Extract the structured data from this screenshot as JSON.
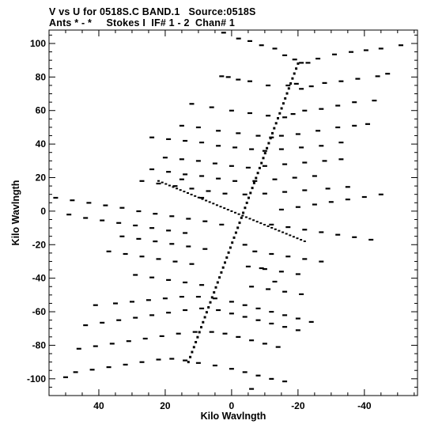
{
  "header": {
    "line1": "V vs U for 0518S.C BAND.1   Source:0518S",
    "line2": "Ants * - *     Stokes I  IF# 1 - 2  Chan# 1"
  },
  "chart_data": {
    "type": "scatter",
    "title": "V vs U for 0518S.C BAND.1   Source:0518S",
    "subtitle": "Ants * - *     Stokes I  IF# 1 - 2  Chan# 1",
    "xlabel": "Kilo Wavlngth",
    "ylabel": "Kilo Wavlngth",
    "xlim": [
      55,
      -56
    ],
    "ylim": [
      -110,
      108
    ],
    "x_reversed": true,
    "xticks": [
      40,
      20,
      0,
      -20,
      -40
    ],
    "yticks": [
      100,
      80,
      60,
      40,
      20,
      0,
      -20,
      -40,
      -60,
      -80,
      -100
    ],
    "xtick_labels": [
      "40",
      "20",
      "0",
      "-20",
      "-40"
    ],
    "ytick_labels": [
      "100",
      "80",
      "60",
      "40",
      "20",
      "0",
      "-20",
      "-40",
      "-60",
      "-80",
      "-100"
    ],
    "grid": false,
    "legend": "none",
    "marker_color": "#000000",
    "series": [
      {
        "values": [
          [
            2.4,
            106.5
          ],
          [
            -2.1,
            103
          ],
          [
            -5.5,
            101.5
          ],
          [
            -9,
            99
          ],
          [
            -13,
            97
          ],
          [
            -16,
            93
          ],
          [
            -19,
            90.5
          ],
          [
            -21,
            88.5
          ],
          [
            -23,
            88.5
          ],
          [
            -26,
            91
          ],
          [
            -31,
            93.5
          ],
          [
            -36,
            95
          ],
          [
            -40.5,
            96
          ],
          [
            -45,
            97
          ],
          [
            -51,
            99
          ],
          [
            -21,
            73
          ],
          [
            -19.5,
            76
          ],
          [
            -17,
            75
          ],
          [
            -11,
            75
          ],
          [
            -5.5,
            77.5
          ],
          [
            -2,
            78.5
          ],
          [
            1,
            80
          ],
          [
            3,
            80.5
          ],
          [
            -24,
            74.5
          ],
          [
            -28,
            76.5
          ],
          [
            -33,
            77.5
          ],
          [
            -38,
            79
          ],
          [
            -44,
            80.5
          ],
          [
            -47,
            82
          ],
          [
            12,
            64
          ],
          [
            6,
            62
          ],
          [
            0,
            60
          ],
          [
            -5.5,
            58.5
          ],
          [
            -11,
            57
          ],
          [
            -16,
            56
          ],
          [
            -18.5,
            58
          ],
          [
            -22,
            60
          ],
          [
            -27,
            61
          ],
          [
            -32,
            63
          ],
          [
            -37,
            65
          ],
          [
            -43,
            66
          ],
          [
            15,
            51
          ],
          [
            10,
            50
          ],
          [
            4,
            48
          ],
          [
            -2,
            46.5
          ],
          [
            -8,
            45
          ],
          [
            -12,
            44
          ],
          [
            -15,
            45
          ],
          [
            -20,
            46
          ],
          [
            -26,
            48
          ],
          [
            -32,
            50
          ],
          [
            -37,
            51
          ],
          [
            -41,
            52
          ],
          [
            24,
            44
          ],
          [
            19,
            43
          ],
          [
            14,
            42
          ],
          [
            9,
            41
          ],
          [
            4,
            39
          ],
          [
            -1,
            38
          ],
          [
            -6,
            37
          ],
          [
            -10,
            36
          ],
          [
            -15,
            37
          ],
          [
            -21,
            38
          ],
          [
            -27,
            39
          ],
          [
            -33,
            41
          ],
          [
            20,
            32
          ],
          [
            15,
            31
          ],
          [
            10,
            30
          ],
          [
            5,
            28.5
          ],
          [
            0,
            27
          ],
          [
            -5,
            26
          ],
          [
            -10,
            27
          ],
          [
            -16,
            28
          ],
          [
            -22,
            29
          ],
          [
            -28,
            30
          ],
          [
            -33,
            31
          ],
          [
            24,
            25
          ],
          [
            19,
            23.5
          ],
          [
            14,
            22
          ],
          [
            9,
            21
          ],
          [
            4,
            19.5
          ],
          [
            -1,
            18
          ],
          [
            -7,
            18
          ],
          [
            -13,
            19
          ],
          [
            -19,
            20
          ],
          [
            -25,
            21
          ],
          [
            27,
            18
          ],
          [
            22,
            16.5
          ],
          [
            17,
            15
          ],
          [
            12,
            13.5
          ],
          [
            7,
            12
          ],
          [
            2,
            10.5
          ],
          [
            -4,
            10
          ],
          [
            -10,
            10.5
          ],
          [
            -16,
            11.5
          ],
          [
            -22,
            12.5
          ],
          [
            -29,
            13.5
          ],
          [
            -35,
            14.5
          ],
          [
            53,
            8
          ],
          [
            48,
            6.5
          ],
          [
            43,
            5
          ],
          [
            38,
            3.5
          ],
          [
            33,
            2
          ],
          [
            28,
            0
          ],
          [
            23,
            -1.5
          ],
          [
            18,
            -3
          ],
          [
            13,
            -4.5
          ],
          [
            8,
            -6
          ],
          [
            -15,
            1
          ],
          [
            -20,
            2.5
          ],
          [
            -25,
            4
          ],
          [
            -30,
            5.5
          ],
          [
            -35,
            7
          ],
          [
            -40,
            8.5
          ],
          [
            -45,
            10
          ],
          [
            49,
            -2
          ],
          [
            44,
            -4
          ],
          [
            39,
            -5.5
          ],
          [
            34,
            -7
          ],
          [
            29,
            -8.5
          ],
          [
            24,
            -10
          ],
          [
            19,
            -11.5
          ],
          [
            14,
            -13
          ],
          [
            -12,
            -8
          ],
          [
            -17,
            -9.5
          ],
          [
            -22,
            -11
          ],
          [
            -27,
            -12.5
          ],
          [
            -32,
            -14
          ],
          [
            -37,
            -15.5
          ],
          [
            -42,
            -17
          ],
          [
            33,
            -15
          ],
          [
            28,
            -16.5
          ],
          [
            23,
            -18
          ],
          [
            18,
            -19.5
          ],
          [
            13,
            -21
          ],
          [
            8,
            -22.5
          ],
          [
            -7,
            -24
          ],
          [
            -12,
            -25.5
          ],
          [
            -17,
            -27
          ],
          [
            -22,
            -28.5
          ],
          [
            -27,
            -30
          ],
          [
            37,
            -24
          ],
          [
            32,
            -25.5
          ],
          [
            27,
            -27
          ],
          [
            22,
            -28.5
          ],
          [
            17,
            -30
          ],
          [
            12,
            -31.5
          ],
          [
            -5,
            -33
          ],
          [
            -10,
            -34.5
          ],
          [
            -15,
            -36
          ],
          [
            -20,
            -37.5
          ],
          [
            29,
            -38
          ],
          [
            24,
            -39.5
          ],
          [
            19,
            -41
          ],
          [
            14,
            -42.5
          ],
          [
            9,
            -44
          ],
          [
            -6,
            -45
          ],
          [
            -11,
            -46.5
          ],
          [
            -16,
            -48
          ],
          [
            -21,
            -49.5
          ],
          [
            41,
            -56
          ],
          [
            35,
            -55
          ],
          [
            30,
            -54
          ],
          [
            25,
            -53
          ],
          [
            20,
            -52
          ],
          [
            15,
            -51
          ],
          [
            10,
            -51
          ],
          [
            5,
            -52
          ],
          [
            0,
            -54
          ],
          [
            -4,
            -56
          ],
          [
            -8,
            -58
          ],
          [
            -12,
            -60
          ],
          [
            -16,
            -62
          ],
          [
            -20,
            -64
          ],
          [
            -24,
            -66
          ],
          [
            44,
            -68
          ],
          [
            39,
            -66.5
          ],
          [
            34,
            -65
          ],
          [
            29,
            -63.5
          ],
          [
            24,
            -62
          ],
          [
            19,
            -60.5
          ],
          [
            14,
            -59
          ],
          [
            9,
            -58
          ],
          [
            4,
            -59
          ],
          [
            0,
            -61
          ],
          [
            -4,
            -63
          ],
          [
            -8,
            -65
          ],
          [
            -12,
            -67
          ],
          [
            -16,
            -69
          ],
          [
            -20,
            -71
          ],
          [
            46,
            -82
          ],
          [
            41,
            -80.5
          ],
          [
            36,
            -79
          ],
          [
            31,
            -77.5
          ],
          [
            26,
            -76
          ],
          [
            21,
            -74.5
          ],
          [
            16,
            -73
          ],
          [
            11,
            -72
          ],
          [
            6,
            -72
          ],
          [
            2,
            -73
          ],
          [
            -2,
            -75
          ],
          [
            -6,
            -77
          ],
          [
            -10,
            -79
          ],
          [
            -14,
            -81
          ],
          [
            47,
            -96
          ],
          [
            42,
            -94.5
          ],
          [
            37,
            -93
          ],
          [
            32,
            -91.5
          ],
          [
            27,
            -90
          ],
          [
            22,
            -88.5
          ],
          [
            18,
            -88
          ],
          [
            14,
            -89
          ],
          [
            10,
            -90.5
          ],
          [
            5,
            -92
          ],
          [
            0,
            -94
          ],
          [
            -4,
            -96
          ],
          [
            -8,
            -98
          ],
          [
            -12,
            -100
          ],
          [
            -16,
            -101.5
          ],
          [
            50,
            -99
          ],
          [
            -6,
            -106
          ],
          [
            15,
            19
          ],
          [
            9,
            8
          ],
          [
            3,
            -8
          ],
          [
            -4,
            -20
          ],
          [
            -9,
            -34
          ],
          [
            -13,
            -42
          ]
        ]
      }
    ]
  }
}
